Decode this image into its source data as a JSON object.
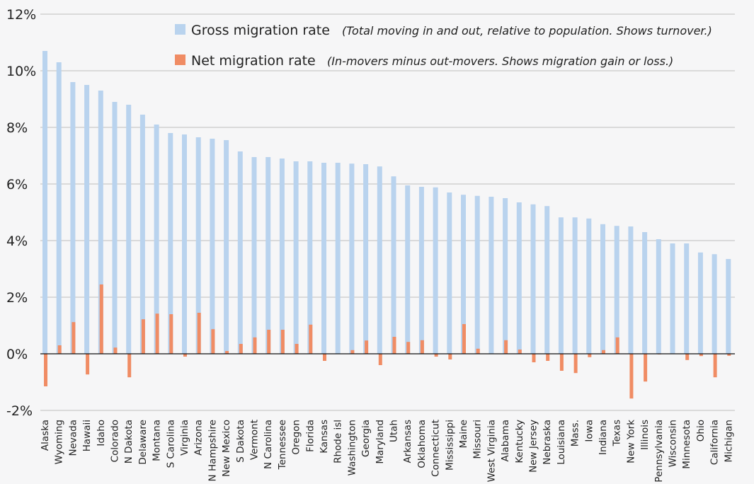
{
  "chart_data": {
    "type": "bar",
    "title": "",
    "xlabel": "",
    "ylabel": "",
    "ylim": [
      -2,
      12
    ],
    "y_ticks": [
      "-2%",
      "0%",
      "2%",
      "4%",
      "6%",
      "8%",
      "10%",
      "12%"
    ],
    "grid": true,
    "legend_position": "top-right",
    "categories": [
      "Alaska",
      "Wyoming",
      "Nevada",
      "Hawaii",
      "Idaho",
      "Colorado",
      "N Dakota",
      "Delaware",
      "Montana",
      "S Carolina",
      "Virginia",
      "Arizona",
      "N Hampshire",
      "New Mexico",
      "S Dakota",
      "Vermont",
      "N Carolina",
      "Tennessee",
      "Oregon",
      "Florida",
      "Kansas",
      "Rhode isl",
      "Washington",
      "Georgia",
      "Maryland",
      "Utah",
      "Arkansas",
      "Oklahoma",
      "Connecticut",
      "Mississippi",
      "Maine",
      "Missouri",
      "West Virginia",
      "Alabama",
      "Kentucky",
      "New Jersey",
      "Nebraska",
      "Louisiana",
      "Mass.",
      "Iowa",
      "Indiana",
      "Texas",
      "New York",
      "Illinois",
      "Pennsylvania",
      "Wisconsin",
      "Minnesota",
      "Ohio",
      "California",
      "Michigan"
    ],
    "series": [
      {
        "name": "Gross migration rate",
        "note": "(Total moving in and out, relative to population. Shows turnover.)",
        "color": "#b9d3ee",
        "values": [
          10.7,
          10.3,
          9.6,
          9.5,
          9.3,
          8.9,
          8.8,
          8.45,
          8.1,
          7.8,
          7.75,
          7.65,
          7.6,
          7.55,
          7.15,
          6.95,
          6.95,
          6.9,
          6.8,
          6.8,
          6.75,
          6.75,
          6.72,
          6.7,
          6.62,
          6.27,
          5.95,
          5.9,
          5.88,
          5.7,
          5.62,
          5.58,
          5.55,
          5.5,
          5.35,
          5.28,
          5.22,
          4.82,
          4.82,
          4.78,
          4.58,
          4.52,
          4.5,
          4.3,
          4.05,
          3.9,
          3.9,
          3.58,
          3.52,
          3.35
        ]
      },
      {
        "name": "Net migration rate",
        "note": "(In-movers minus out-movers. Shows migration gain or loss.)",
        "color": "#f08c64",
        "values": [
          -1.15,
          0.3,
          1.12,
          -0.73,
          2.45,
          0.22,
          -0.83,
          1.22,
          1.42,
          1.4,
          -0.1,
          1.45,
          0.87,
          0.1,
          0.35,
          0.58,
          0.85,
          0.85,
          0.35,
          1.03,
          -0.25,
          0.0,
          0.13,
          0.47,
          -0.4,
          0.6,
          0.42,
          0.48,
          -0.1,
          -0.2,
          1.05,
          0.18,
          0.0,
          0.48,
          0.15,
          -0.3,
          -0.25,
          -0.6,
          -0.68,
          -0.12,
          0.13,
          0.58,
          -1.58,
          -0.98,
          -0.02,
          0.0,
          -0.22,
          -0.08,
          -0.83,
          -0.07
        ]
      }
    ]
  }
}
